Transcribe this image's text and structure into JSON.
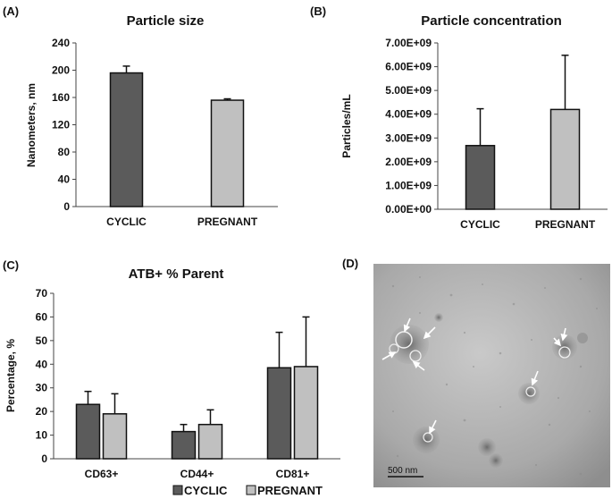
{
  "panels": {
    "A": "(A)",
    "B": "(B)",
    "C": "(C)",
    "D": "(D)"
  },
  "colors": {
    "cyclic": "#5b5b5b",
    "pregnant": "#c0c0c0",
    "edge": "#111111"
  },
  "chart_data": [
    {
      "type": "bar",
      "title": "Particle size",
      "ylabel": "Nanometers, nm",
      "xlabel": "",
      "ylim": [
        0,
        240
      ],
      "yticks": [
        "0",
        "40",
        "80",
        "120",
        "160",
        "200",
        "240"
      ],
      "categories": [
        "CYCLIC",
        "PREGNANT"
      ],
      "values": [
        196,
        156
      ],
      "errors": [
        10,
        2
      ]
    },
    {
      "type": "bar",
      "title": "Particle concentration",
      "ylabel": "Particles/mL",
      "xlabel": "",
      "ylim": [
        0,
        7000000000
      ],
      "yticks": [
        "0.00E+00",
        "1.00E+09",
        "2.00E+09",
        "3.00E+09",
        "4.00E+09",
        "5.00E+09",
        "6.00E+09",
        "7.00E+09"
      ],
      "categories": [
        "CYCLIC",
        "PREGNANT"
      ],
      "values": [
        2680000000,
        4200000000
      ],
      "errors": [
        1550000000,
        2280000000
      ]
    },
    {
      "type": "bar",
      "title": "ATB+ % Parent",
      "ylabel": "Percentage, %",
      "xlabel": "",
      "ylim": [
        0,
        70
      ],
      "yticks": [
        "0",
        "10",
        "20",
        "30",
        "40",
        "50",
        "60",
        "70"
      ],
      "categories": [
        "CD63+",
        "CD44+",
        "CD81+"
      ],
      "series": [
        {
          "name": "CYCLIC",
          "values": [
            23,
            11.5,
            38.5
          ],
          "errors": [
            5.5,
            3,
            15
          ]
        },
        {
          "name": "PREGNANT",
          "values": [
            19,
            14.5,
            39
          ],
          "errors": [
            8.5,
            6.2,
            21
          ]
        }
      ],
      "legend": "bottom"
    }
  ],
  "micrograph": {
    "scale_label": "500 nm"
  }
}
